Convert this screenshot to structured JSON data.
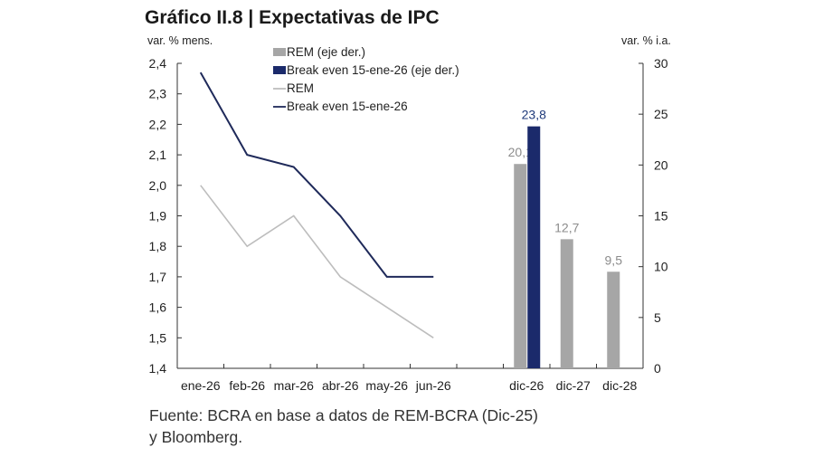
{
  "chart_data": {
    "type": "line+bar",
    "title": "Gráfico II.8 | Expectativas de IPC",
    "left_axis_label": "var. % mens.",
    "right_axis_label": "var. % i.a.",
    "left_ylim": [
      1.4,
      2.4
    ],
    "left_ticks": [
      "1,4",
      "1,5",
      "1,6",
      "1,7",
      "1,8",
      "1,9",
      "2,0",
      "2,1",
      "2,2",
      "2,3",
      "2,4"
    ],
    "right_ylim": [
      0,
      30
    ],
    "right_ticks": [
      "0",
      "5",
      "10",
      "15",
      "20",
      "25",
      "30"
    ],
    "categories": [
      "ene-26",
      "feb-26",
      "mar-26",
      "abr-26",
      "may-26",
      "jun-26",
      "",
      "dic-26",
      "dic-27",
      "dic-28"
    ],
    "line_series": [
      {
        "name": "REM",
        "color": "#bdbdbd",
        "values": [
          2.0,
          1.8,
          1.9,
          1.7,
          1.6,
          1.5
        ]
      },
      {
        "name": "Break even 15-ene-26",
        "color": "#1f2a5a",
        "values": [
          2.37,
          2.1,
          2.06,
          1.9,
          1.7,
          1.7
        ]
      }
    ],
    "bar_series": [
      {
        "name": "REM (eje der.)",
        "color": "#a6a6a6",
        "label_color": "#8c8c8c",
        "values": {
          "dic-26": 20.1,
          "dic-27": 12.7,
          "dic-28": 9.5
        },
        "labels": {
          "dic-26": "20,1",
          "dic-27": "12,7",
          "dic-28": "9,5"
        }
      },
      {
        "name": "Break even 15-ene-26 (eje der.)",
        "color": "#1b2a6b",
        "label_color": "#1f3a7a",
        "values": {
          "dic-26": 23.8
        },
        "labels": {
          "dic-26": "23,8"
        }
      }
    ],
    "legend_position": "top-center",
    "legend": [
      "REM (eje der.)",
      "Break even 15-ene-26 (eje der.)",
      "REM",
      "Break even 15-ene-26"
    ]
  },
  "source": {
    "line1": "Fuente: BCRA en base a datos de REM-BCRA (Dic-25)",
    "line2": "y Bloomberg."
  }
}
